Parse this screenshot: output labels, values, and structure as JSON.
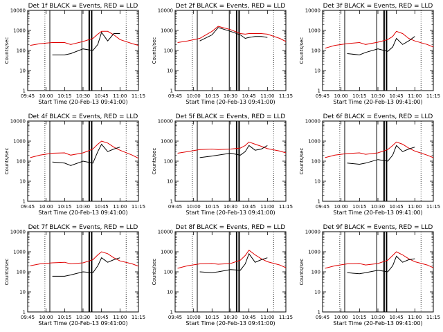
{
  "chart_data": {
    "type": "line",
    "xlabel": "Start Time (20-Feb-13 09:41:00)",
    "ylabel": "Counts/sec",
    "yscale": "log",
    "ylim": [
      1,
      10000
    ],
    "xlim": [
      "09:45",
      "11:15"
    ],
    "x_ticks": [
      "09:45",
      "10:00",
      "10:15",
      "10:30",
      "10:45",
      "11:00",
      "11:15"
    ],
    "y_ticks": [
      "1",
      "10",
      "100",
      "1000",
      "10000"
    ],
    "series_colors": {
      "events": "#000000",
      "lld": "#e00000"
    },
    "vertical_lines": {
      "dotted": [
        "09:59",
        "11:05"
      ],
      "solid_thin": [
        "10:03",
        "10:29"
      ],
      "solid_thick": [
        "10:35",
        "10:37"
      ]
    },
    "plots": [
      {
        "title": "Det 1f  BLACK = Events, RED = LLD",
        "x": [
          "09:47",
          "09:55",
          "10:05",
          "10:15",
          "10:20",
          "10:30",
          "10:38",
          "10:42",
          "10:45",
          "10:50",
          "10:55",
          "11:00",
          "11:10",
          "11:15"
        ],
        "events": [
          null,
          null,
          60,
          60,
          70,
          120,
          100,
          200,
          800,
          300,
          700,
          700,
          null,
          null
        ],
        "lld": [
          180,
          220,
          250,
          250,
          200,
          280,
          400,
          650,
          900,
          900,
          600,
          350,
          220,
          180
        ]
      },
      {
        "title": "Det 2f  BLACK = Events, RED = LLD",
        "x": [
          "09:47",
          "09:55",
          "10:05",
          "10:15",
          "10:20",
          "10:30",
          "10:38",
          "10:42",
          "10:45",
          "10:50",
          "10:55",
          "11:00",
          "11:10",
          "11:15"
        ],
        "events": [
          null,
          null,
          300,
          600,
          1400,
          900,
          600,
          400,
          450,
          500,
          500,
          450,
          null,
          null
        ],
        "lld": [
          250,
          300,
          400,
          900,
          1600,
          1100,
          700,
          650,
          700,
          700,
          700,
          650,
          400,
          280
        ]
      },
      {
        "title": "Det 3f  BLACK = Events, RED = LLD",
        "x": [
          "09:47",
          "09:55",
          "10:05",
          "10:15",
          "10:20",
          "10:30",
          "10:38",
          "10:42",
          "10:45",
          "10:50",
          "10:55",
          "11:00",
          "11:10",
          "11:15"
        ],
        "events": [
          null,
          null,
          70,
          60,
          80,
          120,
          90,
          150,
          400,
          200,
          300,
          500,
          null,
          null
        ],
        "lld": [
          130,
          180,
          220,
          250,
          200,
          260,
          350,
          500,
          900,
          700,
          400,
          300,
          200,
          150
        ]
      },
      {
        "title": "Det 4f  BLACK = Events, RED = LLD",
        "x": [
          "09:47",
          "09:55",
          "10:05",
          "10:15",
          "10:20",
          "10:30",
          "10:38",
          "10:42",
          "10:45",
          "10:50",
          "10:55",
          "11:00",
          "11:10",
          "11:15"
        ],
        "events": [
          null,
          null,
          90,
          80,
          60,
          100,
          80,
          300,
          700,
          300,
          400,
          500,
          null,
          null
        ],
        "lld": [
          150,
          200,
          250,
          260,
          200,
          260,
          400,
          700,
          1000,
          800,
          500,
          350,
          200,
          140
        ]
      },
      {
        "title": "Det 5f  BLACK = Events, RED = LLD",
        "x": [
          "09:47",
          "09:55",
          "10:05",
          "10:15",
          "10:20",
          "10:30",
          "10:38",
          "10:42",
          "10:45",
          "10:50",
          "10:55",
          "11:00",
          "11:10",
          "11:15"
        ],
        "events": [
          null,
          null,
          150,
          180,
          200,
          250,
          200,
          300,
          600,
          350,
          400,
          600,
          null,
          null
        ],
        "lld": [
          250,
          300,
          380,
          400,
          380,
          400,
          450,
          600,
          900,
          700,
          550,
          420,
          320,
          260
        ]
      },
      {
        "title": "Det 6f  BLACK = Events, RED = LLD",
        "x": [
          "09:47",
          "09:55",
          "10:05",
          "10:15",
          "10:20",
          "10:30",
          "10:38",
          "10:42",
          "10:45",
          "10:50",
          "10:55",
          "11:00",
          "11:10",
          "11:15"
        ],
        "events": [
          null,
          null,
          80,
          70,
          80,
          120,
          100,
          200,
          600,
          300,
          400,
          500,
          null,
          null
        ],
        "lld": [
          150,
          200,
          240,
          260,
          220,
          260,
          380,
          600,
          900,
          700,
          450,
          320,
          200,
          150
        ]
      },
      {
        "title": "Det 7f  BLACK = Events, RED = LLD",
        "x": [
          "09:47",
          "09:55",
          "10:05",
          "10:15",
          "10:20",
          "10:30",
          "10:38",
          "10:42",
          "10:45",
          "10:50",
          "10:55",
          "11:00",
          "11:10",
          "11:15"
        ],
        "events": [
          null,
          null,
          60,
          60,
          70,
          100,
          90,
          200,
          500,
          300,
          400,
          500,
          null,
          null
        ],
        "lld": [
          200,
          250,
          280,
          300,
          250,
          280,
          400,
          700,
          1000,
          800,
          500,
          350,
          250,
          190
        ]
      },
      {
        "title": "Det 8f  BLACK = Events, RED = LLD",
        "x": [
          "09:47",
          "09:55",
          "10:05",
          "10:15",
          "10:20",
          "10:30",
          "10:38",
          "10:42",
          "10:45",
          "10:50",
          "10:55",
          "11:00",
          "11:10",
          "11:15"
        ],
        "events": [
          null,
          null,
          100,
          90,
          100,
          130,
          120,
          250,
          800,
          300,
          400,
          500,
          null,
          null
        ],
        "lld": [
          150,
          200,
          250,
          260,
          240,
          260,
          380,
          650,
          1200,
          700,
          450,
          320,
          220,
          160
        ]
      },
      {
        "title": "Det 9f  BLACK = Events, RED = LLD",
        "x": [
          "09:47",
          "09:55",
          "10:05",
          "10:15",
          "10:20",
          "10:30",
          "10:38",
          "10:42",
          "10:45",
          "10:50",
          "10:55",
          "11:00",
          "11:10",
          "11:15"
        ],
        "events": [
          null,
          null,
          90,
          80,
          90,
          120,
          100,
          200,
          600,
          300,
          400,
          450,
          null,
          null
        ],
        "lld": [
          150,
          200,
          250,
          260,
          220,
          260,
          380,
          650,
          1000,
          700,
          450,
          320,
          220,
          160
        ]
      }
    ]
  }
}
